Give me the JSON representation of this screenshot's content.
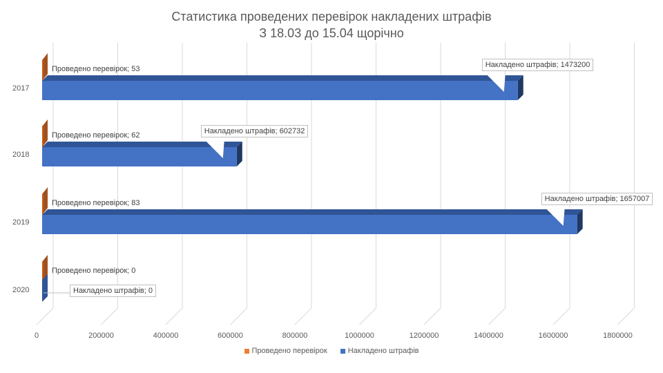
{
  "chart_data": {
    "type": "bar",
    "orientation": "horizontal",
    "style": "3d-clustered",
    "title": "Статистика проведених перевірок накладених штрафів",
    "subtitle": "З 18.03 до 15.04 щорічно",
    "categories": [
      "2017",
      "2018",
      "2019",
      "2020"
    ],
    "series": [
      {
        "name": "Проведено перевірок",
        "color": "#ED7D31",
        "values": [
          53,
          62,
          83,
          0
        ]
      },
      {
        "name": "Накладено штрафів",
        "color": "#4472C4",
        "values": [
          1473200,
          602732,
          1657007,
          0
        ]
      }
    ],
    "xlabel": "",
    "ylabel": "",
    "xlim": [
      0,
      1800000
    ],
    "xticks": [
      "0",
      "200000",
      "400000",
      "600000",
      "800000",
      "1000000",
      "1200000",
      "1400000",
      "1600000",
      "1800000"
    ],
    "grid": true,
    "legend_position": "bottom",
    "data_labels": [
      [
        "Проведено перевірок; 53",
        "Накладено штрафів; 1473200"
      ],
      [
        "Проведено перевірок; 62",
        "Накладено штрафів; 602732"
      ],
      [
        "Проведено перевірок; 83",
        "Накладено штрафів; 1657007"
      ],
      [
        "Проведено перевірок; 0",
        "Накладено штрафів; 0"
      ]
    ]
  },
  "title_line1": "Статистика проведених перевірок накладених штрафів",
  "title_line2": "З 18.03 до 15.04 щорічно",
  "legend": {
    "item1": "Проведено перевірок",
    "item2": "Накладено штрафів"
  }
}
